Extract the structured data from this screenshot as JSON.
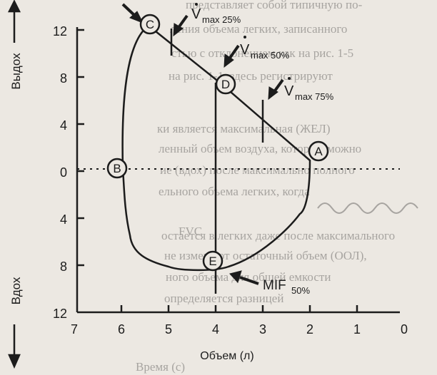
{
  "diagram": {
    "y_axis_top_label": "Выдох",
    "y_axis_bottom_label": "Вдох",
    "y_ticks": [
      "12",
      "8",
      "4",
      "0",
      "4",
      "8",
      "12"
    ],
    "x_ticks": [
      "7",
      "6",
      "5",
      "4",
      "3",
      "2",
      "1",
      "0"
    ],
    "x_axis_label": "Объем (л)",
    "points": {
      "A": "A",
      "B": "B",
      "C": "C",
      "D": "D",
      "E": "E"
    },
    "annotations": {
      "vmax25": {
        "main": "V",
        "sub": "max 25%"
      },
      "vmax50": {
        "main": "V",
        "sub": "max 50%"
      },
      "vmax75": {
        "main": "V",
        "sub": "max 75%"
      },
      "mif50": {
        "main": "MIF",
        "sub": "50%"
      },
      "fvc": "FVC"
    }
  },
  "background_text": [
    "представляет собой типичную по-",
    "ления объема легких, записанного",
    "стью с отклонением как на рис. 1-5",
    "на рис. 1-1, здесь регистрируют",
    "ки является максимальная (ЖЕЛ)",
    "ленный объем воздуха, который можно",
    "ие (вдох) после максимально полного",
    "ельного объема легких, когда",
    "остается в легких даже после максимального",
    "не изменяют остаточный объем (ООЛ),",
    "ного объема для общей емкости",
    "определяется разницей",
    "Время (с)"
  ],
  "colors": {
    "ink": "#1c1c1c",
    "paper": "#ece8e2",
    "ghost": "#a7a4a0"
  }
}
